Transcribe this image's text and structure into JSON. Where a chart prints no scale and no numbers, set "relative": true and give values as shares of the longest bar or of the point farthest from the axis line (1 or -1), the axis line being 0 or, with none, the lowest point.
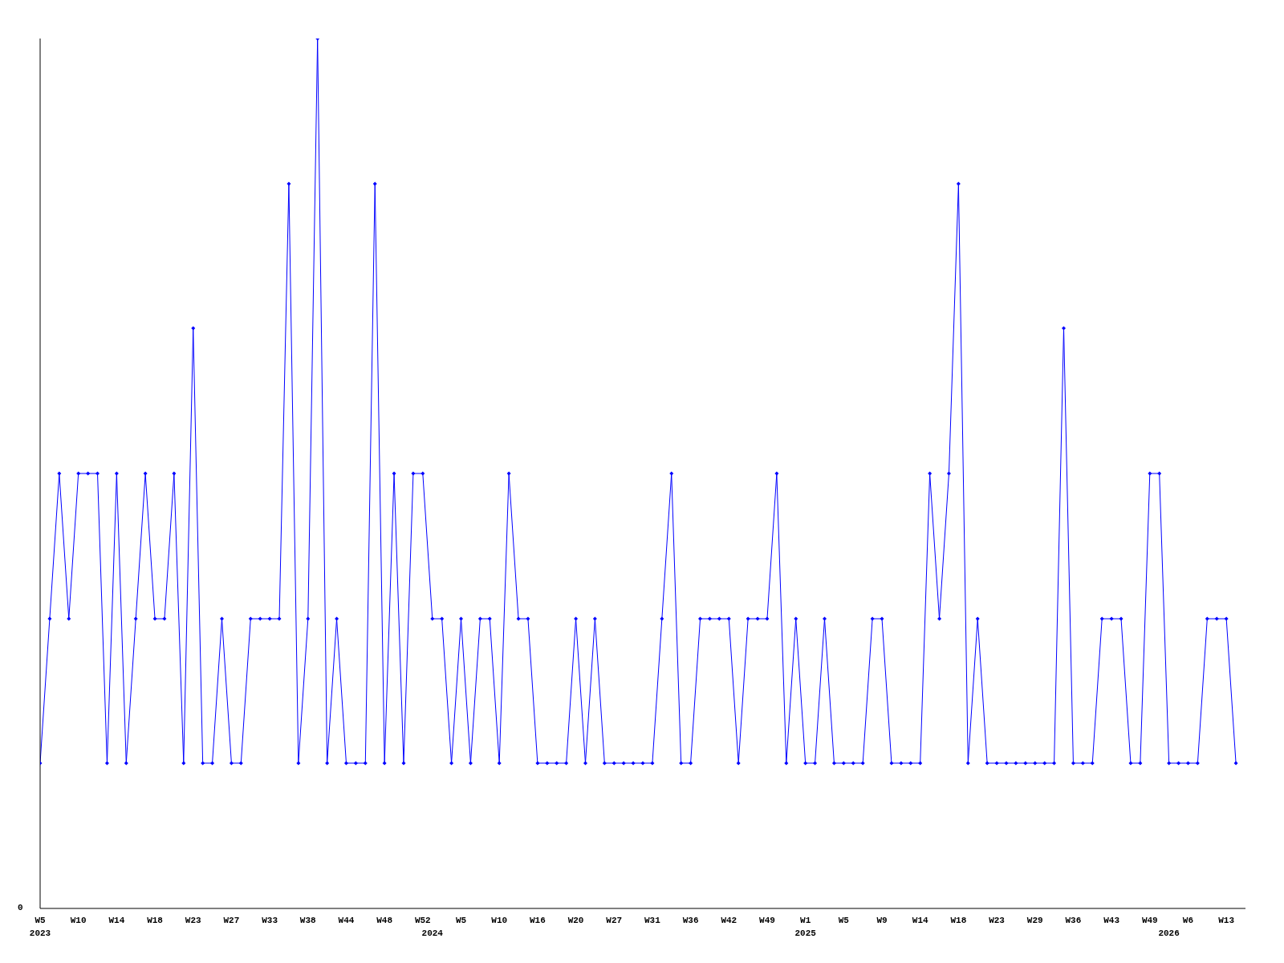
{
  "chart_data": {
    "type": "line",
    "relative": true,
    "marker": "diamond",
    "line_style": "solid",
    "grid": false,
    "legend": false,
    "annotations": [
      "0"
    ],
    "categories": [
      "W5\n2023",
      null,
      null,
      null,
      "W10",
      null,
      null,
      null,
      "W14",
      null,
      null,
      null,
      "W18",
      null,
      null,
      null,
      "W23",
      null,
      null,
      null,
      "W27",
      null,
      null,
      null,
      "W33",
      null,
      null,
      null,
      "W38",
      null,
      null,
      null,
      "W44",
      null,
      null,
      null,
      "W48",
      null,
      null,
      null,
      "W52",
      "\n2024",
      null,
      null,
      "W5",
      null,
      null,
      null,
      "W10",
      null,
      null,
      null,
      "W16",
      null,
      null,
      null,
      "W20",
      null,
      null,
      null,
      "W27",
      null,
      null,
      null,
      "W31",
      null,
      null,
      null,
      "W36",
      null,
      null,
      null,
      "W42",
      null,
      null,
      null,
      "W49",
      null,
      null,
      null,
      "W1\n2025",
      null,
      null,
      null,
      "W5",
      null,
      null,
      null,
      "W9",
      null,
      null,
      null,
      "W14",
      null,
      null,
      null,
      "W18",
      null,
      null,
      null,
      "W23",
      null,
      null,
      null,
      "W29",
      null,
      null,
      null,
      "W36",
      null,
      null,
      null,
      "W43",
      null,
      null,
      null,
      "W49",
      null,
      "\n2026",
      null,
      "W6",
      null,
      null,
      null,
      "W13",
      null
    ],
    "series": [
      {
        "color": "#0000ff",
        "values": [
          0.167,
          0.333,
          0.5,
          0.333,
          0.5,
          0.5,
          0.5,
          0.167,
          0.5,
          0.167,
          0.333,
          0.5,
          0.333,
          0.333,
          0.5,
          0.167,
          0.667,
          0.167,
          0.167,
          0.333,
          0.167,
          0.167,
          0.333,
          0.333,
          0.333,
          0.333,
          0.833,
          0.167,
          0.333,
          1,
          0.167,
          0.333,
          0.167,
          0.167,
          0.167,
          0.833,
          0.167,
          0.5,
          0.167,
          0.5,
          0.5,
          0.333,
          0.333,
          0.167,
          0.333,
          0.167,
          0.333,
          0.333,
          0.167,
          0.5,
          0.333,
          0.333,
          0.167,
          0.167,
          0.167,
          0.167,
          0.333,
          0.167,
          0.333,
          0.167,
          0.167,
          0.167,
          0.167,
          0.167,
          0.167,
          0.333,
          0.5,
          0.167,
          0.167,
          0.333,
          0.333,
          0.333,
          0.333,
          0.167,
          0.333,
          0.333,
          0.333,
          0.5,
          0.167,
          0.333,
          0.167,
          0.167,
          0.333,
          0.167,
          0.167,
          0.167,
          0.167,
          0.333,
          0.333,
          0.167,
          0.167,
          0.167,
          0.167,
          0.5,
          0.333,
          0.5,
          0.833,
          0.167,
          0.333,
          0.167,
          0.167,
          0.167,
          0.167,
          0.167,
          0.167,
          0.167,
          0.167,
          0.667,
          0.167,
          0.167,
          0.167,
          0.333,
          0.333,
          0.333,
          0.167,
          0.167,
          0.5,
          0.5,
          0.167,
          0.167,
          0.167,
          0.167,
          0.333,
          0.333,
          0.333,
          0.167
        ]
      }
    ]
  }
}
